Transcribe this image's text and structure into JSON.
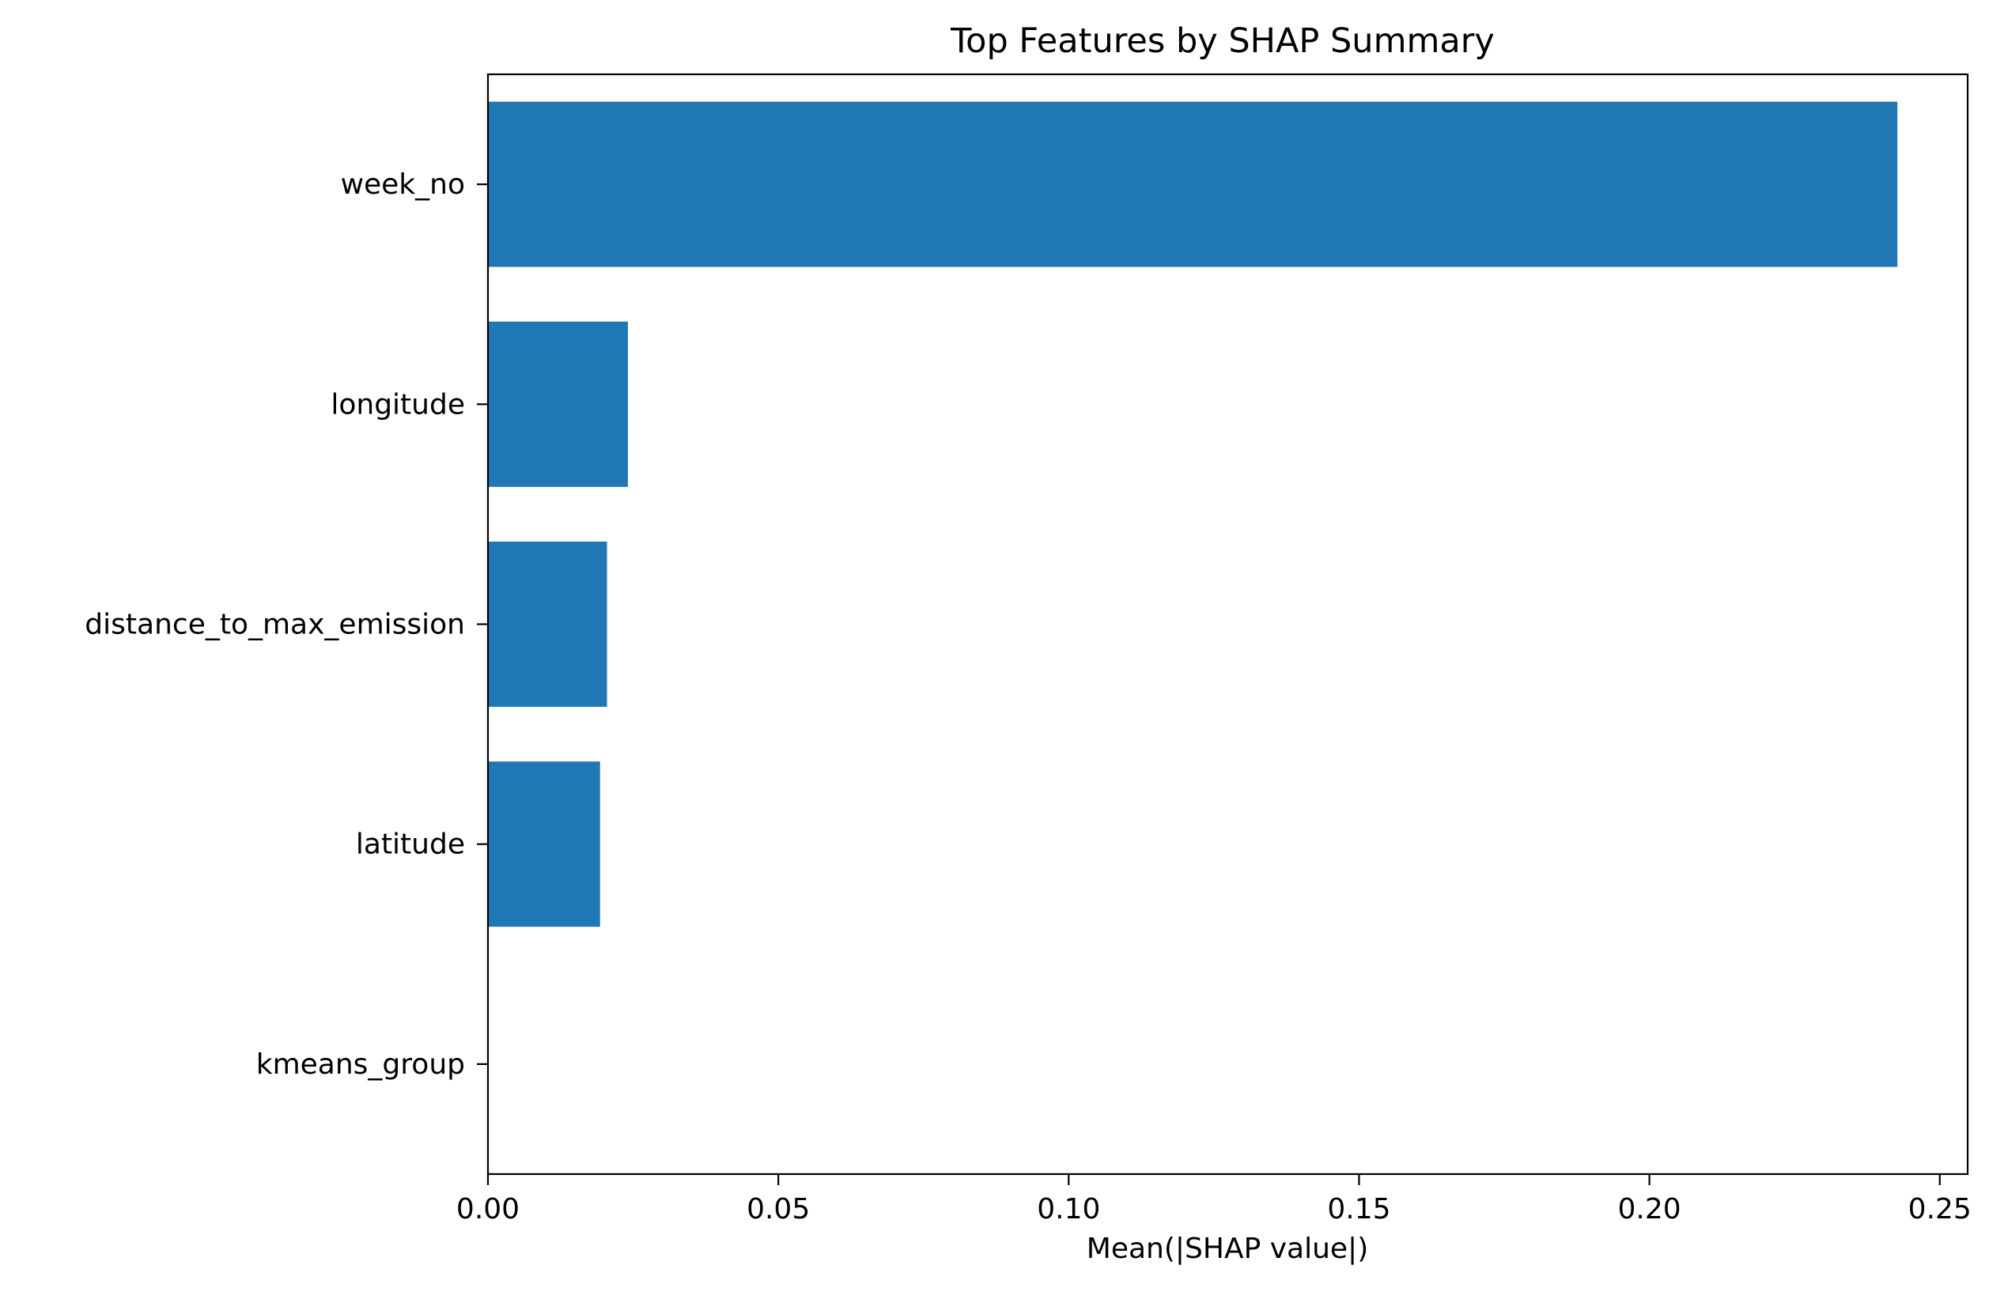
{
  "chart_data": {
    "type": "bar",
    "orientation": "horizontal",
    "title": "Top Features by SHAP Summary",
    "xlabel": "Mean(|SHAP value|)",
    "ylabel": "",
    "categories": [
      "week_no",
      "longitude",
      "distance_to_max_emission",
      "latitude",
      "kmeans_group"
    ],
    "values": [
      0.2427,
      0.0241,
      0.0205,
      0.0193,
      0.0
    ],
    "xlim": [
      0.0,
      0.2548
    ],
    "xticks": [
      0.0,
      0.05,
      0.1,
      0.15,
      0.2,
      0.25
    ],
    "xtick_labels": [
      "0.00",
      "0.05",
      "0.10",
      "0.15",
      "0.20",
      "0.25"
    ],
    "grid": false,
    "bar_color": "#1f77b4"
  }
}
